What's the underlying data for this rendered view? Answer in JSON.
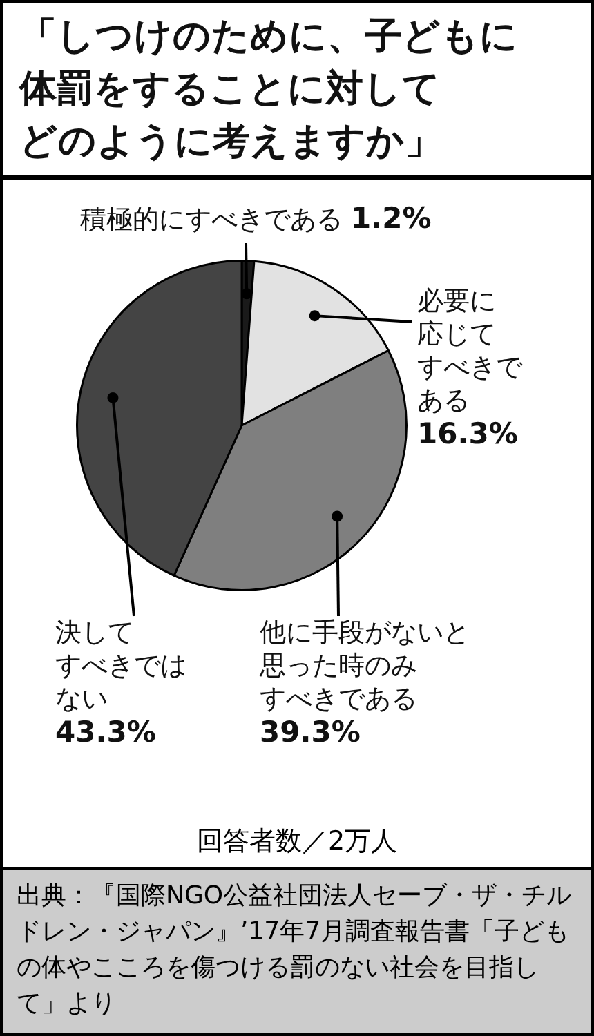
{
  "chart_data": {
    "type": "pie",
    "title": "「しつけのために、子どもに体罰をすることに対してどのように考えますか」",
    "categories": [
      "積極的にすべきである",
      "必要に応じてすべきである",
      "他に手段がないと思った時のみすべきである",
      "決してすべきではない"
    ],
    "values": [
      1.2,
      16.3,
      39.3,
      43.3
    ],
    "value_labels": [
      "1.2%",
      "16.3%",
      "39.3%",
      "43.3%"
    ],
    "colors": [
      "#1a1a1a",
      "#e2e2e2",
      "#7f7f7f",
      "#444444"
    ],
    "legend": false,
    "annotations": [
      "回答者数／2万人",
      "出典：『国際NGO公益社団法人セーブ・ザ・チルドレン・ジャパン』’17年7月調査報告書「子どもの体やこころを傷つける罰のない社会を目指して」より"
    ]
  }
}
